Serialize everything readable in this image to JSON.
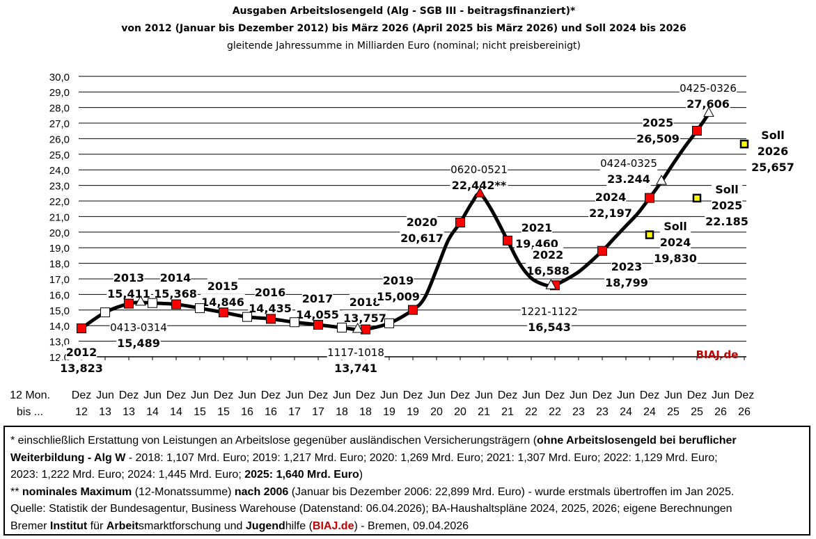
{
  "title": [
    "Ausgaben Arbeitslosengeld (Alg - SGB III - beitragsfinanziert)*",
    "von 2012 (Januar bis Dezember 2012) bis März 2026 (April 2025 bis März 2026) und Soll 2024 bis 2026",
    "gleitende  Jahressumme in Milliarden Euro (nominal; nicht preisbereinigt)"
  ],
  "chart_data": {
    "type": "line",
    "ylim": [
      12,
      30
    ],
    "yticks": [
      "12,0",
      "13,0",
      "14,0",
      "15,0",
      "16,0",
      "17,0",
      "18,0",
      "19,0",
      "20,0",
      "21,0",
      "22,0",
      "23,0",
      "24,0",
      "25,0",
      "26,0",
      "27,0",
      "28,0",
      "29,0",
      "30,0"
    ],
    "grid": true,
    "x_axis_label": [
      "12 Mon.",
      "bis ..."
    ],
    "xticks": [
      [
        "Dez",
        "12"
      ],
      [
        "Jun",
        "13"
      ],
      [
        "Dez",
        "13"
      ],
      [
        "Jun",
        "14"
      ],
      [
        "Dez",
        "14"
      ],
      [
        "Jun",
        "15"
      ],
      [
        "Dez",
        "15"
      ],
      [
        "Jun",
        "16"
      ],
      [
        "Dez",
        "16"
      ],
      [
        "Jun",
        "17"
      ],
      [
        "Dez",
        "17"
      ],
      [
        "Jun",
        "18"
      ],
      [
        "Dez",
        "18"
      ],
      [
        "Jun",
        "19"
      ],
      [
        "Dez",
        "19"
      ],
      [
        "Jun",
        "20"
      ],
      [
        "Dez",
        "20"
      ],
      [
        "Jun",
        "21"
      ],
      [
        "Dez",
        "21"
      ],
      [
        "Jun",
        "22"
      ],
      [
        "Dez",
        "22"
      ],
      [
        "Jun",
        "23"
      ],
      [
        "Dez",
        "23"
      ],
      [
        "Jun",
        "24"
      ],
      [
        "Dez",
        "24"
      ],
      [
        "Jun",
        "25"
      ],
      [
        "Dez",
        "25"
      ],
      [
        "Jun",
        "26"
      ],
      [
        "Dez",
        "26"
      ]
    ],
    "series": [
      {
        "kind": "line",
        "points": [
          [
            "2012-12",
            13.823
          ],
          [
            "2013-06",
            14.85
          ],
          [
            "2013-12",
            15.411
          ],
          [
            "2014-03",
            15.489
          ],
          [
            "2014-06",
            15.45
          ],
          [
            "2014-12",
            15.368
          ],
          [
            "2015-06",
            15.12
          ],
          [
            "2015-12",
            14.846
          ],
          [
            "2016-06",
            14.56
          ],
          [
            "2016-12",
            14.435
          ],
          [
            "2017-06",
            14.22
          ],
          [
            "2017-12",
            14.055
          ],
          [
            "2018-06",
            13.87
          ],
          [
            "2018-10",
            13.741
          ],
          [
            "2018-12",
            13.757
          ],
          [
            "2019-06",
            14.15
          ],
          [
            "2019-12",
            15.009
          ],
          [
            "2020-03",
            15.8
          ],
          [
            "2020-06",
            17.6
          ],
          [
            "2020-09",
            19.5
          ],
          [
            "2020-12",
            20.617
          ],
          [
            "2021-03",
            21.9
          ],
          [
            "2021-05",
            22.442
          ],
          [
            "2021-08",
            21.4
          ],
          [
            "2021-12",
            19.46
          ],
          [
            "2022-03",
            18.0
          ],
          [
            "2022-06",
            17.05
          ],
          [
            "2022-09",
            16.65
          ],
          [
            "2022-11",
            16.543
          ],
          [
            "2022-12",
            16.588
          ],
          [
            "2023-06",
            17.45
          ],
          [
            "2023-12",
            18.799
          ],
          [
            "2024-03",
            19.6
          ],
          [
            "2024-06",
            20.4
          ],
          [
            "2024-09",
            21.2
          ],
          [
            "2024-12",
            22.197
          ],
          [
            "2025-03",
            23.244
          ],
          [
            "2025-06",
            24.4
          ],
          [
            "2025-09",
            25.5
          ],
          [
            "2025-12",
            26.509
          ],
          [
            "2026-03",
            27.606
          ]
        ]
      },
      {
        "kind": "dec-marker",
        "color": "#ff0000",
        "points": [
          [
            "2012-12",
            13.823
          ],
          [
            "2013-12",
            15.411
          ],
          [
            "2014-12",
            15.368
          ],
          [
            "2015-12",
            14.846
          ],
          [
            "2016-12",
            14.435
          ],
          [
            "2017-12",
            14.055
          ],
          [
            "2018-12",
            13.757
          ],
          [
            "2019-12",
            15.009
          ],
          [
            "2020-12",
            20.617
          ],
          [
            "2021-12",
            19.46
          ],
          [
            "2022-12",
            16.588
          ],
          [
            "2023-12",
            18.799
          ],
          [
            "2024-12",
            22.197
          ],
          [
            "2025-12",
            26.509
          ]
        ]
      },
      {
        "kind": "jun-marker",
        "color": "#ffffff",
        "points": [
          [
            "2013-06",
            14.85
          ],
          [
            "2014-06",
            15.45
          ],
          [
            "2015-06",
            15.12
          ],
          [
            "2016-06",
            14.56
          ],
          [
            "2017-06",
            14.22
          ],
          [
            "2018-06",
            13.87
          ],
          [
            "2019-06",
            14.15
          ]
        ]
      },
      {
        "kind": "extreme-triangle",
        "points": [
          [
            "2014-03",
            15.489,
            "#ffffff"
          ],
          [
            "2018-10",
            13.741,
            "#ffffff"
          ],
          [
            "2021-05",
            22.442,
            "#ff0000"
          ],
          [
            "2022-11",
            16.543,
            "#ffffff"
          ],
          [
            "2025-03",
            23.244,
            "#ffffff"
          ],
          [
            "2026-03",
            27.606,
            "#ffffff"
          ]
        ]
      },
      {
        "kind": "soll",
        "color": "#ffff00",
        "points": [
          [
            "2024-12",
            19.83
          ],
          [
            "2025-12",
            22.185
          ],
          [
            "2026-12",
            25.657
          ]
        ]
      }
    ],
    "annotations": [
      [
        "2012",
        "13,823"
      ],
      [
        "2013",
        "15,411"
      ],
      [
        "2014",
        "15,368"
      ],
      [
        "0413-0314",
        "15,489"
      ],
      [
        "2015",
        "14,846"
      ],
      [
        "2016",
        "14,435"
      ],
      [
        "2017",
        "14,055"
      ],
      [
        "2018",
        "13,757"
      ],
      [
        "1117-1018",
        "13,741"
      ],
      [
        "2019",
        "15,009"
      ],
      [
        "2020",
        "20,617"
      ],
      [
        "0620-0521",
        "22,442**"
      ],
      [
        "2021",
        "19,460"
      ],
      [
        "2022",
        "16,588"
      ],
      [
        "1221-1122",
        "16,543"
      ],
      [
        "2023",
        "18,799"
      ],
      [
        "2024",
        "22,197"
      ],
      [
        "0424-0325",
        "23.244"
      ],
      [
        "2025",
        "26,509"
      ],
      [
        "0425-0326",
        "27,606"
      ],
      [
        "Soll",
        "2024",
        "19,830"
      ],
      [
        "Soll",
        "2025",
        "22.185"
      ],
      [
        "Soll",
        "2026",
        "25,657"
      ]
    ],
    "brand": "BIAJ.de"
  },
  "footer": [
    [
      [
        "*    einschließlich Erstattung von Leistungen an Arbeitslose gegenüber ausländischen Versicherungsträgern (",
        0
      ],
      [
        "ohne Arbeitslosengeld bei beruflicher",
        1
      ]
    ],
    [
      [
        "      Weiterbildung  - Alg W",
        1
      ],
      [
        " - 2018: 1,107 Mrd. Euro; 2019: 1,217 Mrd. Euro; 2020: 1,269 Mrd. Euro; 2021: 1,307 Mrd. Euro; 2022: 1,129 Mrd. Euro;",
        0
      ]
    ],
    [
      [
        "      2023: 1,222 Mrd. Euro; 2024: 1,445 Mrd. Euro; ",
        0
      ],
      [
        "2025: 1,640 Mrd. Euro",
        1
      ],
      [
        ")",
        0
      ]
    ],
    [
      [
        "** ",
        0
      ],
      [
        "nominales Maximum",
        1
      ],
      [
        " (12-Monatssumme) ",
        0
      ],
      [
        "nach 2006",
        1
      ],
      [
        " (Januar bis Dezember 2006: 22,899 Mrd. Euro) - wurde erstmals übertroffen im Jan 2025.",
        0
      ]
    ],
    [
      [
        "Quelle: Statistik der Bundesagentur, Business Warehouse (Datenstand: 06.04.2026); BA-Haushaltspläne 2024, 2025, 2026; eigene Berechnungen",
        0
      ]
    ],
    [
      [
        "Bremer ",
        0
      ],
      [
        "Institut",
        1
      ],
      [
        " für ",
        0
      ],
      [
        "Arbeit",
        1
      ],
      [
        "smarktforschung und ",
        0
      ],
      [
        "Jugend",
        1
      ],
      [
        "hilfe (",
        0
      ],
      [
        "BIAJ.de",
        2
      ],
      [
        ") - Bremen, 09.04.2026",
        0
      ]
    ]
  ]
}
